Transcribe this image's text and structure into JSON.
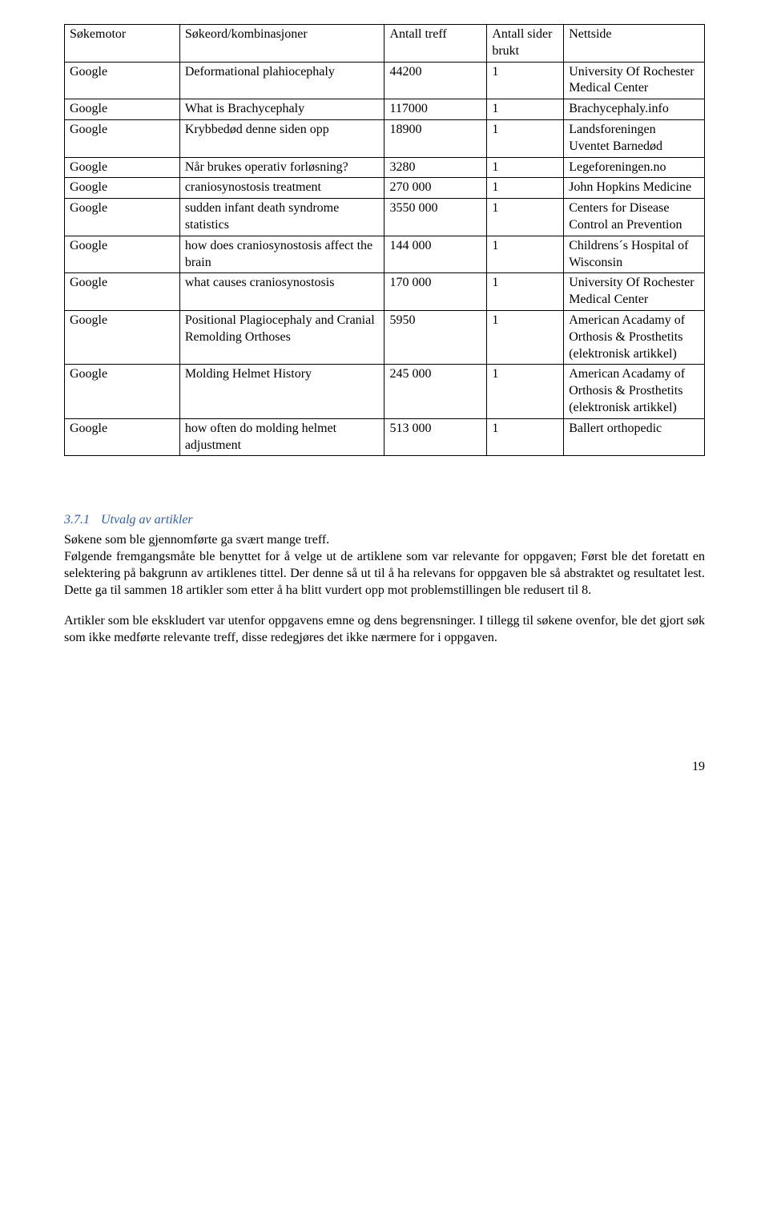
{
  "table": {
    "headers": [
      "Søkemotor",
      "Søkeord/kombinasjoner",
      "Antall treff",
      "Antall sider brukt",
      "Nettside"
    ],
    "rows": [
      [
        "Google",
        "Deformational plahiocephaly",
        "44200",
        "1",
        "University Of Rochester Medical Center"
      ],
      [
        "Google",
        "What is Brachycephaly",
        "117000",
        "1",
        "Brachycephaly.info"
      ],
      [
        "Google",
        "Krybbedød denne siden opp",
        "18900",
        "1",
        "Landsforeningen Uventet Barnedød"
      ],
      [
        "Google",
        "Når brukes operativ forløsning?",
        "3280",
        "1",
        "Legeforeningen.no"
      ],
      [
        "Google",
        "craniosynostosis treatment",
        "270 000",
        "1",
        "John Hopkins Medicine"
      ],
      [
        "Google",
        "sudden infant death syndrome statistics",
        "3550 000",
        "1",
        "Centers for Disease Control an Prevention"
      ],
      [
        "Google",
        "how does craniosynostosis affect the brain",
        "144 000",
        "1",
        "Childrens´s Hospital of Wisconsin"
      ],
      [
        "Google",
        "what causes craniosynostosis",
        "170 000",
        "1",
        "University Of Rochester Medical Center"
      ],
      [
        "Google",
        "Positional Plagiocephaly and Cranial Remolding Orthoses",
        "5950",
        "1",
        "American Acadamy of Orthosis & Prosthetits (elektronisk artikkel)"
      ],
      [
        "Google",
        "Molding Helmet History",
        "245 000",
        "1",
        "American Acadamy of Orthosis & Prosthetits (elektronisk artikkel)"
      ],
      [
        "Google",
        "how often do molding helmet adjustment",
        "513 000",
        "1",
        "Ballert orthopedic"
      ]
    ]
  },
  "section": {
    "number": "3.7.1",
    "title": "Utvalg av artikler",
    "p1": "Søkene som ble gjennomførte ga svært mange treff.",
    "p2": "Følgende fremgangsmåte ble benyttet for å velge ut de artiklene som var relevante for oppgaven; Først ble det foretatt en selektering på bakgrunn av artiklenes tittel. Der denne så ut til å ha relevans for oppgaven ble så abstraktet og resultatet lest. Dette ga til sammen 18 artikler som etter å ha blitt vurdert opp mot problemstillingen ble redusert til 8.",
    "p3": "Artikler som ble ekskludert var utenfor oppgavens emne og dens begrensninger. I tillegg til søkene ovenfor, ble det gjort søk som ikke medførte relevante treff, disse redegjøres det ikke nærmere for i oppgaven."
  },
  "page_number": "19"
}
